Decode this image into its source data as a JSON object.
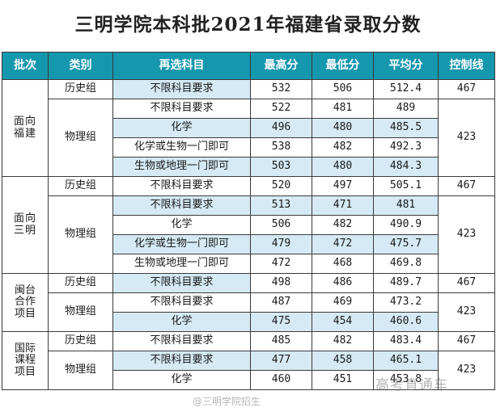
{
  "title": "三明学院本科批2021年福建省录取分数",
  "headers": [
    "批次",
    "类别",
    "再选科目",
    "最高分",
    "最低分",
    "平均分",
    "控制线"
  ],
  "groups": [
    {
      "batch": [
        "面向",
        "福建"
      ],
      "categories": [
        {
          "name": "历史组",
          "control": "467",
          "rows": [
            {
              "subject": "不限科目要求",
              "max": "532",
              "min": "506",
              "avg": "512.4"
            }
          ]
        },
        {
          "name": "物理组",
          "control": "423",
          "rows": [
            {
              "subject": "不限科目要求",
              "max": "522",
              "min": "481",
              "avg": "489"
            },
            {
              "subject": "化学",
              "max": "496",
              "min": "480",
              "avg": "485.5"
            },
            {
              "subject": "化学或生物一门即可",
              "max": "538",
              "min": "482",
              "avg": "492.3"
            },
            {
              "subject": "生物或地理一门即可",
              "max": "503",
              "min": "480",
              "avg": "484.3"
            }
          ]
        }
      ]
    },
    {
      "batch": [
        "面向",
        "三明"
      ],
      "categories": [
        {
          "name": "历史组",
          "control": "467",
          "rows": [
            {
              "subject": "不限科目要求",
              "max": "520",
              "min": "497",
              "avg": "505.1"
            }
          ]
        },
        {
          "name": "物理组",
          "control": "423",
          "rows": [
            {
              "subject": "不限科目要求",
              "max": "513",
              "min": "471",
              "avg": "481"
            },
            {
              "subject": "化学",
              "max": "506",
              "min": "482",
              "avg": "490.9"
            },
            {
              "subject": "化学或生物一门即可",
              "max": "479",
              "min": "472",
              "avg": "475.7"
            },
            {
              "subject": "生物或地理一门即可",
              "max": "472",
              "min": "468",
              "avg": "469.8"
            }
          ]
        }
      ]
    },
    {
      "batch": [
        "闽台",
        "合作",
        "项目"
      ],
      "categories": [
        {
          "name": "历史组",
          "control": "467",
          "rows": [
            {
              "subject": "不限科目要求",
              "max": "498",
              "min": "486",
              "avg": "489.7"
            }
          ]
        },
        {
          "name": "物理组",
          "control": "423",
          "rows": [
            {
              "subject": "不限科目要求",
              "max": "487",
              "min": "469",
              "avg": "473.2"
            },
            {
              "subject": "化学",
              "max": "475",
              "min": "454",
              "avg": "460.6"
            }
          ]
        }
      ]
    },
    {
      "batch": [
        "国际",
        "课程",
        "项目"
      ],
      "categories": [
        {
          "name": "历史组",
          "control": "467",
          "rows": [
            {
              "subject": "不限科目要求",
              "max": "485",
              "min": "482",
              "avg": "483.4"
            }
          ]
        },
        {
          "name": "物理组",
          "control": "423",
          "rows": [
            {
              "subject": "不限科目要求",
              "max": "477",
              "min": "458",
              "avg": "465.1"
            },
            {
              "subject": "化学",
              "max": "460",
              "min": "451",
              "avg": "453.8"
            }
          ]
        }
      ]
    }
  ],
  "watermarks": {
    "channel": "高考直通车",
    "weibo": "@三明学院招生"
  },
  "colors": {
    "header_bg": "#1597ad",
    "header_text": "#ffffff",
    "row_highlight": "#d5eaf4"
  }
}
